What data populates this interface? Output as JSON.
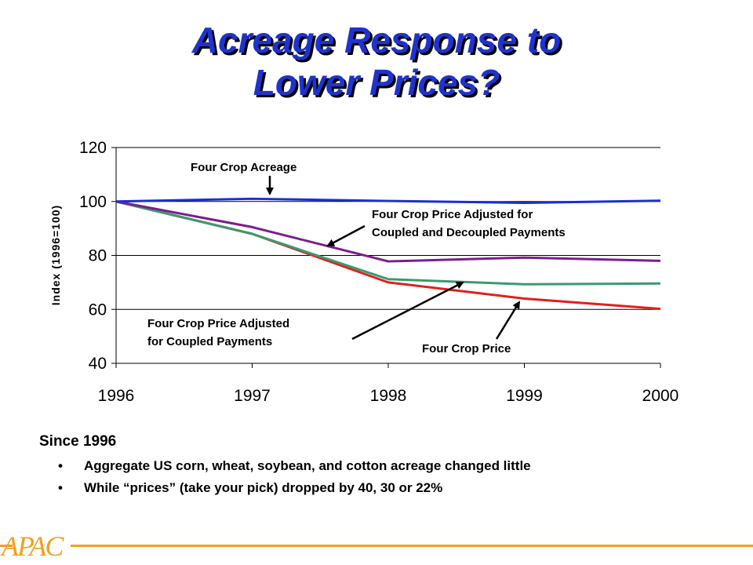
{
  "slide": {
    "title_line1": "Acreage Response to",
    "title_line2": "Lower Prices?",
    "subheading": "Since 1996",
    "bullets": [
      "Aggregate US corn, wheat, soybean, and cotton acreage changed little",
      "While “prices” (take your pick) dropped by 40, 30 or 22%"
    ],
    "logo_text": "APAC",
    "bullet_glyph": "•"
  },
  "chart_data": {
    "type": "line",
    "title": "",
    "xlabel": "",
    "ylabel": "Index (1996=100)",
    "categories": [
      "1996",
      "1997",
      "1998",
      "1999",
      "2000"
    ],
    "ylim": [
      40,
      120
    ],
    "yticks": [
      40,
      60,
      80,
      100,
      120
    ],
    "grid": "horizontal",
    "series": [
      {
        "name": "Four Crop Acreage",
        "values": [
          100,
          101,
          100.2,
          99.5,
          100.3
        ],
        "color": "#1a2fd6"
      },
      {
        "name": "Four Crop Price Adjusted for Coupled and Decoupled Payments",
        "values": [
          100,
          90.5,
          77.8,
          79.2,
          78
        ],
        "color": "#7a1e8c"
      },
      {
        "name": "Four Crop Price Adjusted for Coupled Payments",
        "values": [
          100,
          88,
          71.2,
          69.3,
          69.6
        ],
        "color": "#3a9a6e"
      },
      {
        "name": "Four Crop Price",
        "values": [
          100,
          88,
          70,
          64,
          60.2
        ],
        "color": "#e0201c"
      }
    ],
    "annotations": [
      {
        "lines": [
          "Four Crop Acreage"
        ],
        "target_series": 0
      },
      {
        "lines": [
          "Four Crop Price Adjusted for",
          "Coupled and Decoupled Payments"
        ],
        "target_series": 1
      },
      {
        "lines": [
          "Four Crop Price Adjusted",
          "for Coupled Payments"
        ],
        "target_series": 2
      },
      {
        "lines": [
          "Four Crop Price"
        ],
        "target_series": 3
      }
    ]
  }
}
